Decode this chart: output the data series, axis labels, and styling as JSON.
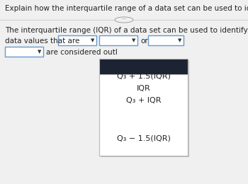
{
  "title": "Explain how the interquartile range of a data set can be used to identify outliers.",
  "line1": "The interquartile range (IQR) of a data set can be used to identify outliers because",
  "line2_prefix": "data values that are",
  "line2_or": "or",
  "line3_suffix": "are considered outl",
  "dropdown_items": [
    "Q₃ + 1.5(IQR)",
    "IQR",
    "Q₃ + IQR",
    "Q₃ − 1.5(IQR)"
  ],
  "bg_color": "#f0f0f0",
  "dropdown_bg": "#1c2333",
  "dropdown_menu_bg": "#ffffff",
  "dropdown_border": "#6699cc",
  "separator_color": "#cccccc",
  "title_fontsize": 7.5,
  "body_fontsize": 7.5,
  "menu_fontsize": 8.0,
  "ellipse_color": "#aaaaaa",
  "shadow_color": "#bbbbbb"
}
